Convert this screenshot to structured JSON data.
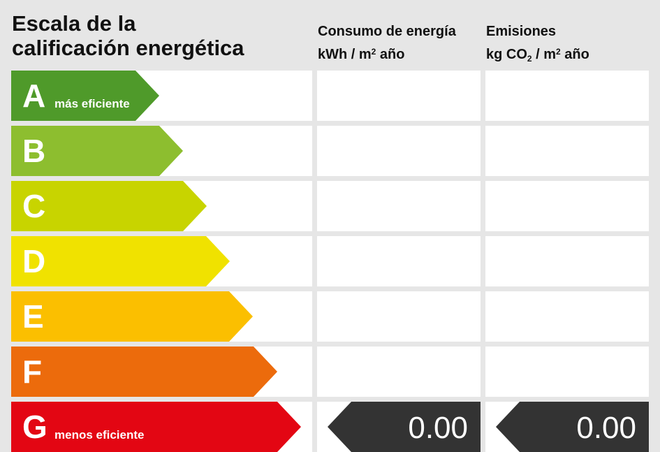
{
  "title_line1": "Escala de la",
  "title_line2": "calificación energética",
  "energy_header_line1": "Consumo de energía",
  "energy_header_unit_a": "kWh / m",
  "energy_header_unit_sup": "2",
  "energy_header_unit_b": " año",
  "emissions_header_line1": "Emisiones",
  "emissions_header_unit_a": "kg CO",
  "emissions_header_unit_sub": "2",
  "emissions_header_unit_b": " / m",
  "emissions_header_unit_sup": "2",
  "emissions_header_unit_c": " año",
  "ratings": [
    {
      "letter": "A",
      "subtitle": "más eficiente",
      "color": "#4f9a2a"
    },
    {
      "letter": "B",
      "subtitle": "",
      "color": "#8dbe2f"
    },
    {
      "letter": "C",
      "subtitle": "",
      "color": "#c8d400"
    },
    {
      "letter": "D",
      "subtitle": "",
      "color": "#f0e200"
    },
    {
      "letter": "E",
      "subtitle": "",
      "color": "#fbbf00"
    },
    {
      "letter": "F",
      "subtitle": "",
      "color": "#ec6b0c"
    },
    {
      "letter": "G",
      "subtitle": "menos eficiente",
      "color": "#e30613"
    }
  ],
  "energy_value": "0.00",
  "emissions_value": "0.00",
  "badge_color": "#333333"
}
